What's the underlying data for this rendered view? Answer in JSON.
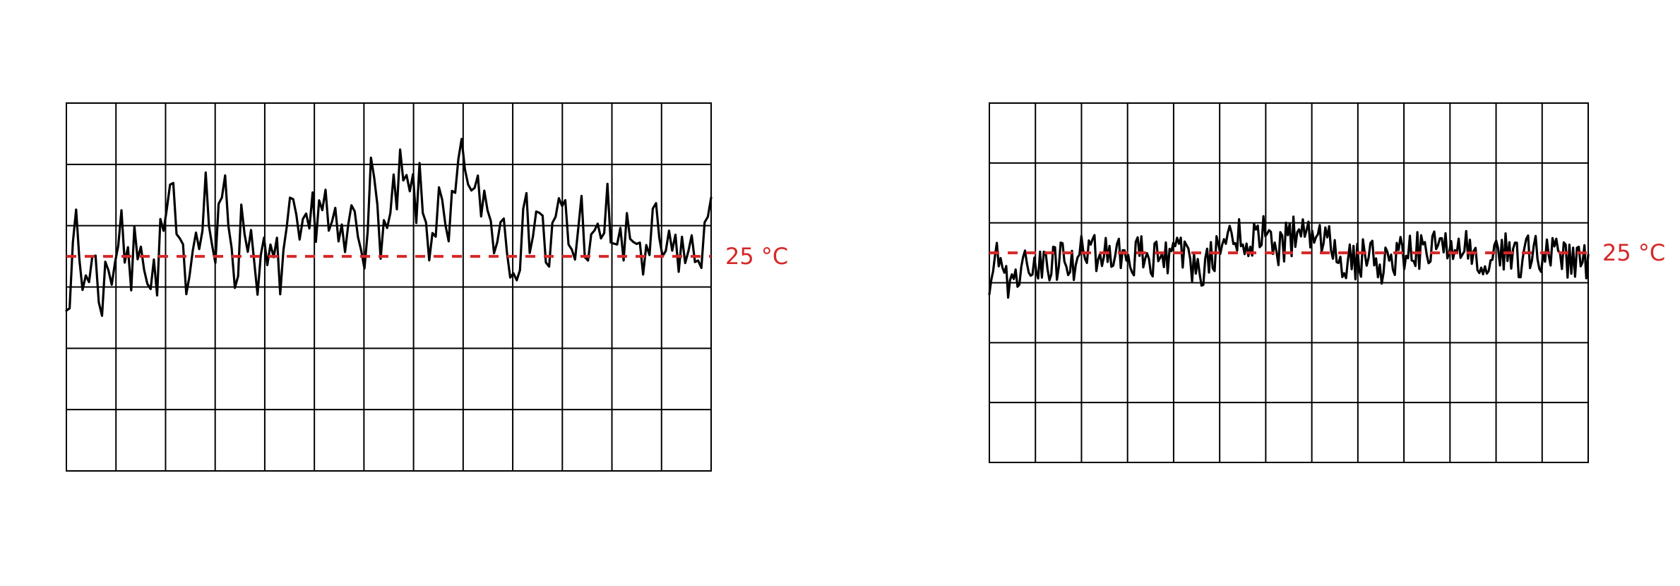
{
  "chart_data": [
    {
      "type": "line",
      "title": "",
      "xlabel": "",
      "ylabel": "",
      "grid": true,
      "legend": "none",
      "n_points": 200,
      "xlim": [
        0,
        13
      ],
      "ylim": [
        -6,
        0
      ],
      "grid_columns": 13,
      "grid_rows": 6,
      "series": [
        {
          "color": "#000000",
          "anchors": [
            {
              "x": 0.0,
              "y": -2.8
            },
            {
              "x": 0.15,
              "y": -2.85
            },
            {
              "x": 0.2,
              "y": -1.9
            },
            {
              "x": 0.3,
              "y": -3.0
            },
            {
              "x": 0.5,
              "y": -2.5
            },
            {
              "x": 0.7,
              "y": -3.1
            },
            {
              "x": 1.0,
              "y": -2.4
            },
            {
              "x": 1.1,
              "y": -1.7
            },
            {
              "x": 1.25,
              "y": -3.0
            },
            {
              "x": 1.5,
              "y": -1.9
            },
            {
              "x": 1.7,
              "y": -3.1
            },
            {
              "x": 2.0,
              "y": -2.0
            },
            {
              "x": 2.1,
              "y": -1.5
            },
            {
              "x": 2.3,
              "y": -2.8
            },
            {
              "x": 2.5,
              "y": -2.4
            },
            {
              "x": 2.8,
              "y": -1.4
            },
            {
              "x": 3.0,
              "y": -2.6
            },
            {
              "x": 3.2,
              "y": -1.4
            },
            {
              "x": 3.4,
              "y": -2.6
            },
            {
              "x": 3.6,
              "y": -1.9
            },
            {
              "x": 3.9,
              "y": -2.7
            },
            {
              "x": 4.3,
              "y": -2.7
            },
            {
              "x": 4.5,
              "y": -2.0
            },
            {
              "x": 4.8,
              "y": -2.5
            },
            {
              "x": 5.0,
              "y": -1.7
            },
            {
              "x": 5.2,
              "y": -1.5
            },
            {
              "x": 5.3,
              "y": -2.2
            },
            {
              "x": 5.6,
              "y": -2.4
            },
            {
              "x": 5.8,
              "y": -1.8
            },
            {
              "x": 6.0,
              "y": -2.2
            },
            {
              "x": 6.1,
              "y": -1.3
            },
            {
              "x": 6.3,
              "y": -1.9
            },
            {
              "x": 6.5,
              "y": -2.2
            },
            {
              "x": 6.7,
              "y": -1.3
            },
            {
              "x": 6.9,
              "y": -1.6
            },
            {
              "x": 7.1,
              "y": -1.5
            },
            {
              "x": 7.3,
              "y": -2.2
            },
            {
              "x": 7.5,
              "y": -1.7
            },
            {
              "x": 7.7,
              "y": -2.5
            },
            {
              "x": 7.9,
              "y": -1.2
            },
            {
              "x": 8.1,
              "y": -1.0
            },
            {
              "x": 8.2,
              "y": -1.8
            },
            {
              "x": 8.4,
              "y": -1.4
            },
            {
              "x": 8.6,
              "y": -2.1
            },
            {
              "x": 8.8,
              "y": -1.8
            },
            {
              "x": 9.0,
              "y": -2.4
            },
            {
              "x": 9.2,
              "y": -2.2
            },
            {
              "x": 9.5,
              "y": -1.6
            },
            {
              "x": 9.7,
              "y": -2.6
            },
            {
              "x": 10.0,
              "y": -1.7
            },
            {
              "x": 10.2,
              "y": -2.5
            },
            {
              "x": 10.4,
              "y": -1.8
            },
            {
              "x": 10.6,
              "y": -2.6
            },
            {
              "x": 10.9,
              "y": -1.8
            },
            {
              "x": 11.2,
              "y": -2.5
            },
            {
              "x": 11.5,
              "y": -2.1
            },
            {
              "x": 11.7,
              "y": -2.8
            },
            {
              "x": 11.9,
              "y": -2.0
            },
            {
              "x": 12.1,
              "y": -2.7
            },
            {
              "x": 12.3,
              "y": -2.3
            },
            {
              "x": 12.6,
              "y": -2.6
            },
            {
              "x": 12.8,
              "y": -2.2
            },
            {
              "x": 13.0,
              "y": -2.1
            }
          ],
          "noise_amplitude": 0.6,
          "seed": 7
        }
      ],
      "threshold": {
        "value": -2.5,
        "label": "25 °C",
        "color": "#d62728"
      }
    },
    {
      "type": "line",
      "title": "",
      "xlabel": "",
      "ylabel": "",
      "grid": true,
      "legend": "none",
      "n_points": 320,
      "xlim": [
        0,
        13
      ],
      "ylim": [
        -6,
        0
      ],
      "grid_columns": 13,
      "grid_rows": 6,
      "series": [
        {
          "color": "#000000",
          "anchors": [
            {
              "x": 0.0,
              "y": -2.9
            },
            {
              "x": 0.2,
              "y": -2.6
            },
            {
              "x": 0.4,
              "y": -3.0
            },
            {
              "x": 0.6,
              "y": -2.8
            },
            {
              "x": 0.9,
              "y": -2.6
            },
            {
              "x": 1.2,
              "y": -2.8
            },
            {
              "x": 1.5,
              "y": -2.6
            },
            {
              "x": 1.8,
              "y": -2.7
            },
            {
              "x": 2.1,
              "y": -2.4
            },
            {
              "x": 2.4,
              "y": -2.5
            },
            {
              "x": 2.7,
              "y": -2.4
            },
            {
              "x": 3.0,
              "y": -2.6
            },
            {
              "x": 3.3,
              "y": -2.5
            },
            {
              "x": 3.6,
              "y": -2.6
            },
            {
              "x": 3.8,
              "y": -2.6
            },
            {
              "x": 4.0,
              "y": -2.4
            },
            {
              "x": 4.2,
              "y": -2.5
            },
            {
              "x": 4.4,
              "y": -2.7
            },
            {
              "x": 4.6,
              "y": -2.9
            },
            {
              "x": 4.9,
              "y": -2.5
            },
            {
              "x": 5.1,
              "y": -2.5
            },
            {
              "x": 5.2,
              "y": -2.1
            },
            {
              "x": 5.4,
              "y": -2.2
            },
            {
              "x": 5.7,
              "y": -2.3
            },
            {
              "x": 6.0,
              "y": -2.2
            },
            {
              "x": 6.3,
              "y": -2.4
            },
            {
              "x": 6.6,
              "y": -2.2
            },
            {
              "x": 6.9,
              "y": -2.3
            },
            {
              "x": 7.2,
              "y": -2.2
            },
            {
              "x": 7.4,
              "y": -2.4
            },
            {
              "x": 7.6,
              "y": -2.6
            },
            {
              "x": 7.9,
              "y": -2.7
            },
            {
              "x": 8.2,
              "y": -2.5
            },
            {
              "x": 8.5,
              "y": -2.7
            },
            {
              "x": 8.8,
              "y": -2.6
            },
            {
              "x": 9.1,
              "y": -2.4
            },
            {
              "x": 9.4,
              "y": -2.5
            },
            {
              "x": 9.7,
              "y": -2.4
            },
            {
              "x": 10.0,
              "y": -2.5
            },
            {
              "x": 10.3,
              "y": -2.4
            },
            {
              "x": 10.6,
              "y": -2.5
            },
            {
              "x": 10.9,
              "y": -2.6
            },
            {
              "x": 11.2,
              "y": -2.5
            },
            {
              "x": 11.5,
              "y": -2.6
            },
            {
              "x": 11.8,
              "y": -2.5
            },
            {
              "x": 12.1,
              "y": -2.6
            },
            {
              "x": 12.4,
              "y": -2.5
            },
            {
              "x": 12.7,
              "y": -2.7
            },
            {
              "x": 13.0,
              "y": -2.6
            }
          ],
          "noise_amplitude": 0.33,
          "seed": 19
        }
      ],
      "threshold": {
        "value": -2.5,
        "label": "25 °C",
        "color": "#d62728"
      }
    }
  ]
}
